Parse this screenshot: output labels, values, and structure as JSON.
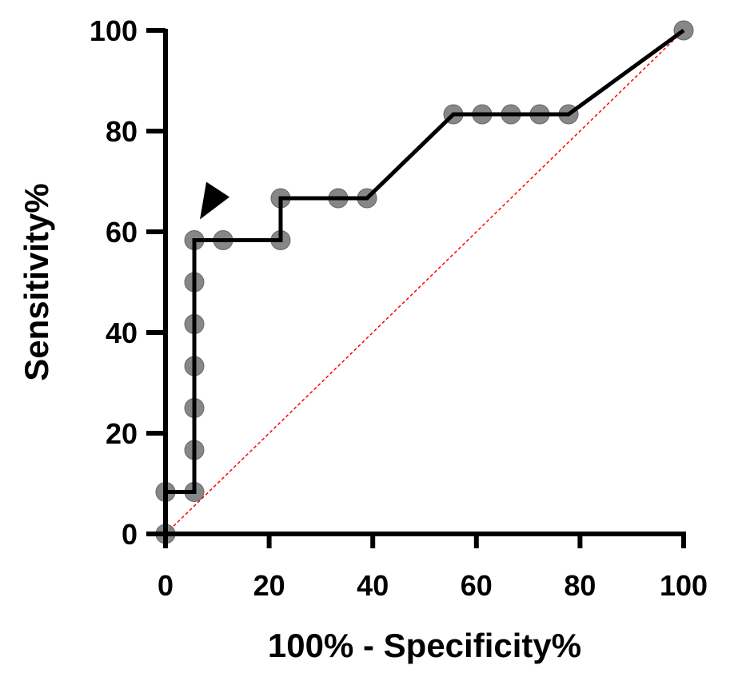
{
  "chart_data": {
    "type": "line",
    "title": "",
    "xlabel": "100% - Specificity%",
    "ylabel": "Sensitivity%",
    "xlim": [
      0,
      100
    ],
    "ylim": [
      0,
      100
    ],
    "xticks": [
      "0",
      "20",
      "40",
      "60",
      "80",
      "100"
    ],
    "yticks": [
      "0",
      "20",
      "40",
      "60",
      "80",
      "100"
    ],
    "grid": false,
    "series": [
      {
        "x": [
          0,
          0,
          5.56,
          5.56,
          5.56,
          5.56,
          5.56,
          5.56,
          5.56,
          11.11,
          22.22,
          22.22,
          33.33,
          38.89,
          55.56,
          61.11,
          66.67,
          72.22,
          77.78,
          100
        ],
        "y": [
          0,
          8.33,
          8.33,
          16.67,
          25,
          33.33,
          41.67,
          50,
          58.33,
          58.33,
          58.33,
          66.67,
          66.67,
          66.67,
          83.33,
          83.33,
          83.33,
          83.33,
          83.33,
          100
        ],
        "color": "#000000",
        "marker_color": "#7a7a7a"
      }
    ],
    "reference_line": {
      "x": [
        0,
        100
      ],
      "y": [
        0,
        100
      ],
      "color": "#ff0000",
      "style": "dashed"
    },
    "annotations": [
      {
        "type": "arrowhead",
        "points_to": {
          "x": 5.56,
          "y": 58.33
        }
      }
    ]
  }
}
